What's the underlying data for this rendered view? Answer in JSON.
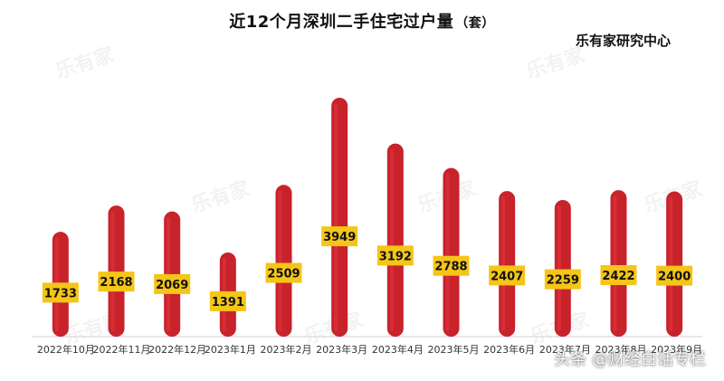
{
  "header": {
    "title": "近12个月深圳二手住宅过户量",
    "title_unit": "（套）",
    "source": "乐有家研究中心"
  },
  "watermarks": {
    "brand_logo_text": "乐有家",
    "corner_text": "头条 @财经白话专栏"
  },
  "colors": {
    "bar": "#c8222b",
    "bar_highlight": "#e0353e",
    "label_bg": "#f5c518",
    "baseline": "#d0d0d0"
  },
  "chart_data": {
    "type": "bar",
    "title": "近12个月深圳二手住宅过户量（套）",
    "categories": [
      "2022年10月",
      "2022年11月",
      "2022年12月",
      "2023年1月",
      "2023年2月",
      "2023年3月",
      "2023年4月",
      "2023年5月",
      "2023年6月",
      "2023年7月",
      "2023年8月",
      "2023年9月"
    ],
    "values": [
      1733,
      2168,
      2069,
      1391,
      2509,
      3949,
      3192,
      2788,
      2407,
      2259,
      2422,
      2400
    ],
    "xlabel": "",
    "ylabel": "",
    "ylim": [
      0,
      4000
    ],
    "grid": false,
    "legend": "none",
    "data_labels": true
  }
}
